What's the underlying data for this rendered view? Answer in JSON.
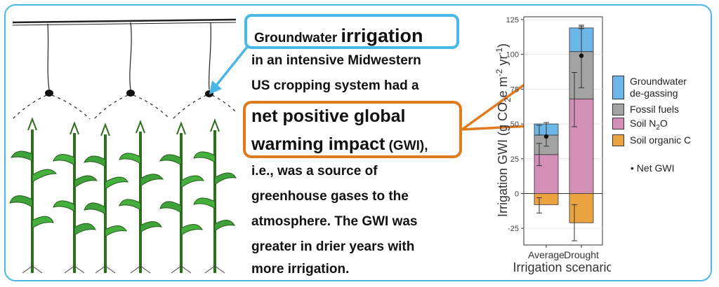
{
  "callout": {
    "line1_prefix": "Groundwater ",
    "line1_emph": "irrigation",
    "line2": "in an intensive Midwestern",
    "line3": "US cropping system had a",
    "line4": "net positive global",
    "line5_main": "warming impact",
    "line5_small": " (GWI),",
    "line6": "i.e., was a source of",
    "line7": "greenhouse gases to the",
    "line8": "atmosphere. The GWI was",
    "line9": "greater in drier years with",
    "line10": "more irrigation."
  },
  "colors": {
    "frame": "#4ab8e6",
    "highlight_orange": "#e07a1f",
    "groundwater": "#6db6e8",
    "fossil": "#a3a3a3",
    "soil_n2o": "#d48fb7",
    "soil_c": "#eba341"
  },
  "chart_data": {
    "type": "bar",
    "stacked": true,
    "categories": [
      "Average",
      "Drought"
    ],
    "xlabel": "Irrigation scenario",
    "ylabel_parts": [
      "Irrigation GWI (g CO",
      "2",
      "e m",
      "-2",
      " yr",
      "-1",
      ")"
    ],
    "ylim": [
      -37,
      127
    ],
    "yticks": [
      -25,
      0,
      25,
      50,
      75,
      100,
      125
    ],
    "ytick_labels": [
      "-25",
      "0",
      "25",
      "50",
      "75",
      "100",
      "125"
    ],
    "series": [
      {
        "name": "Groundwater de-gassing",
        "legend_lines": [
          "Groundwater",
          "de-gassing"
        ],
        "color": "#6db6e8",
        "values": [
          8,
          17
        ]
      },
      {
        "name": "Fossil fuels",
        "legend_lines": [
          "Fossil fuels"
        ],
        "color": "#a3a3a3",
        "values": [
          14,
          34
        ]
      },
      {
        "name": "Soil N2O",
        "legend_lines": [
          "Soil N",
          "2",
          "O"
        ],
        "color": "#d48fb7",
        "values": [
          28,
          68
        ]
      },
      {
        "name": "Soil organic C",
        "legend_lines": [
          "Soil organic C"
        ],
        "color": "#eba341",
        "values": [
          -8,
          -21
        ]
      }
    ],
    "error_bars": {
      "groundwater_top": [
        [
          null,
          null
        ],
        [
          118.5,
          120
        ]
      ],
      "fossil_top": [
        [
          42,
          49
        ],
        [
          null,
          null
        ]
      ],
      "soil_n2o_top": [
        [
          20,
          36
        ],
        [
          48,
          87
        ]
      ],
      "soil_c_bottom": [
        [
          -14,
          -3
        ],
        [
          -34,
          -8
        ]
      ]
    },
    "net_gwi": {
      "label": "Net GWI",
      "values": [
        41,
        99
      ],
      "ci": [
        [
          34,
          51
        ],
        [
          76,
          121
        ]
      ]
    }
  }
}
